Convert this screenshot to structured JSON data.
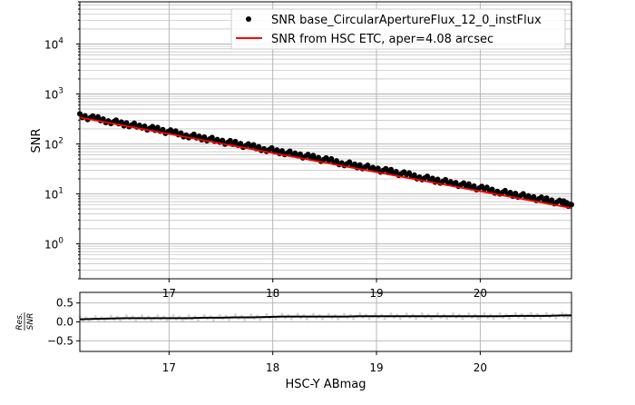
{
  "chart_data": [
    {
      "type": "scatter",
      "ylabel": "SNR",
      "yscale": "log",
      "xlim": [
        16.14,
        20.88
      ],
      "ylim": [
        0.2,
        70000
      ],
      "grid": true,
      "x_ticks": [
        "17",
        "18",
        "19",
        "20"
      ],
      "y_ticks": [
        {
          "base": "10",
          "exp": "0",
          "v": 1
        },
        {
          "base": "10",
          "exp": "1",
          "v": 10
        },
        {
          "base": "10",
          "exp": "2",
          "v": 100
        },
        {
          "base": "10",
          "exp": "3",
          "v": 1000
        },
        {
          "base": "10",
          "exp": "4",
          "v": 10000
        }
      ],
      "legend_placement": "top-right",
      "series": [
        {
          "name": "SNR base_CircularApertureFlux_12_0_instFlux",
          "kind": "scatter",
          "color": "#000000",
          "x": [
            16.14,
            16.29,
            16.44,
            16.59,
            16.74,
            16.89,
            17.04,
            17.19,
            17.34,
            17.49,
            17.64,
            17.79,
            17.94,
            18.09,
            18.24,
            18.39,
            18.54,
            18.69,
            18.84,
            18.99,
            19.14,
            19.29,
            19.44,
            19.59,
            19.74,
            19.89,
            20.04,
            20.19,
            20.34,
            20.49,
            20.64,
            20.79,
            20.88
          ],
          "y": [
            363,
            321,
            283,
            251,
            220,
            193,
            168,
            147,
            131,
            114,
            101,
            88.7,
            78.4,
            69.3,
            60.8,
            53.2,
            46.6,
            40.8,
            36.1,
            31.6,
            27.7,
            24.3,
            21.3,
            18.6,
            16.3,
            14.3,
            12.5,
            11.0,
            9.71,
            8.5,
            7.45,
            6.59,
            6.08
          ]
        },
        {
          "name": "SNR from HSC ETC, aper=4.08 arcsec",
          "kind": "line",
          "color": "#ff0000",
          "x": [
            16.14,
            20.88
          ],
          "y": [
            339,
            5.2
          ]
        }
      ]
    },
    {
      "type": "line",
      "xlabel": "HSC-Y ABmag",
      "ylabel": "Res./SNR",
      "xlim": [
        16.14,
        20.88
      ],
      "ylim": [
        -0.78,
        0.78
      ],
      "grid": true,
      "x_ticks": [
        "17",
        "18",
        "19",
        "20"
      ],
      "y_ticks": [
        "0.5",
        "0.0",
        "−0.5"
      ],
      "y_tick_values": [
        0.5,
        0.0,
        -0.5
      ],
      "x": [
        16.14,
        16.29,
        16.44,
        16.59,
        16.74,
        16.89,
        17.04,
        17.19,
        17.34,
        17.49,
        17.64,
        17.79,
        17.94,
        18.09,
        18.24,
        18.39,
        18.54,
        18.69,
        18.84,
        18.99,
        19.14,
        19.29,
        19.44,
        19.59,
        19.74,
        19.89,
        20.04,
        20.19,
        20.34,
        20.49,
        20.64,
        20.79,
        20.88
      ],
      "y": [
        0.07,
        0.08,
        0.09,
        0.1,
        0.1,
        0.1,
        0.1,
        0.1,
        0.11,
        0.11,
        0.12,
        0.12,
        0.13,
        0.14,
        0.14,
        0.14,
        0.14,
        0.14,
        0.15,
        0.15,
        0.15,
        0.15,
        0.15,
        0.15,
        0.15,
        0.15,
        0.15,
        0.15,
        0.16,
        0.16,
        0.16,
        0.17,
        0.17
      ],
      "line_color": "#000000",
      "scatter_color": "#bbbbbb"
    }
  ],
  "ylabel_res_num": "Res.",
  "ylabel_res_den": "SNR"
}
